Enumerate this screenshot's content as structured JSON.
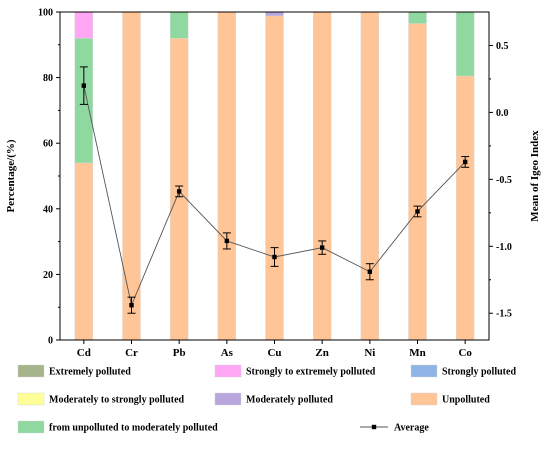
{
  "chart_data": {
    "type": "bar",
    "stacked": true,
    "categories": [
      "Cd",
      "Cr",
      "Pb",
      "As",
      "Cu",
      "Zn",
      "Ni",
      "Mn",
      "Co"
    ],
    "ylabel_left": "Percentage/(%)",
    "ylabel_right": "Mean of Igeo Index",
    "ylim_left": [
      0,
      100
    ],
    "ylim_right": [
      -1.7,
      0.75
    ],
    "yticks_left": [
      0,
      20,
      40,
      60,
      80,
      100
    ],
    "yticks_right": [
      -1.5,
      -1.0,
      -0.5,
      0.0,
      0.5
    ],
    "ytick_labels_right": [
      "-1.5",
      "-1.0",
      "-0.5",
      "0.0",
      "0.5"
    ],
    "series": [
      {
        "name": "Unpolluted",
        "color": "#FFC597",
        "values": [
          54,
          100,
          92,
          100,
          98.8,
          100,
          100,
          96.5,
          80.5
        ]
      },
      {
        "name": "from unpolluted to moderately polluted",
        "color": "#8FD9A0",
        "values": [
          38,
          0,
          8,
          0,
          0,
          0,
          0,
          3.5,
          19.5
        ]
      },
      {
        "name": "Moderately polluted",
        "color": "#B8A6DC",
        "values": [
          0,
          0,
          0,
          0,
          1.2,
          0,
          0,
          0,
          0
        ]
      },
      {
        "name": "Moderately to strongly polluted",
        "color": "#FFFF99",
        "values": [
          0,
          0,
          0,
          0,
          0,
          0,
          0,
          0,
          0
        ]
      },
      {
        "name": "Strongly polluted",
        "color": "#8FB4E6",
        "values": [
          0,
          0,
          0,
          0,
          0,
          0,
          0,
          0,
          0
        ]
      },
      {
        "name": "Strongly to extremely polluted",
        "color": "#FFA6F5",
        "values": [
          8,
          0,
          0,
          0,
          0,
          0,
          0,
          0,
          0
        ]
      },
      {
        "name": "Extremely polluted",
        "color": "#A6B48C",
        "values": [
          0,
          0,
          0,
          0,
          0,
          0,
          0,
          0,
          0
        ]
      }
    ],
    "line": {
      "name": "Average",
      "axis": "right",
      "color": "#555555",
      "values": [
        0.2,
        -1.44,
        -0.59,
        -0.96,
        -1.08,
        -1.01,
        -1.19,
        -0.74,
        -0.37
      ],
      "errors": [
        0.14,
        0.06,
        0.04,
        0.06,
        0.07,
        0.05,
        0.06,
        0.04,
        0.04
      ]
    },
    "legend": {
      "placement": "bottom",
      "rows": [
        [
          "Extremely polluted",
          "Strongly to extremely polluted",
          "Strongly polluted"
        ],
        [
          "Moderately to strongly polluted",
          "Moderately polluted",
          "Unpolluted"
        ],
        [
          "from unpolluted to moderately polluted",
          "Average"
        ]
      ]
    },
    "grid": false
  }
}
